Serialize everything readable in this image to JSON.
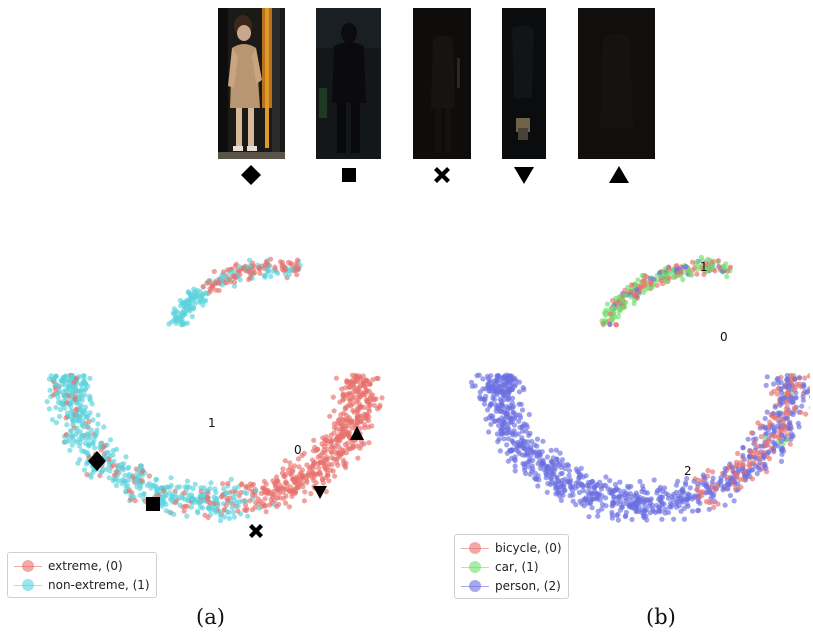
{
  "thumbnails": [
    {
      "id": "img1",
      "marker": "diamond",
      "brightness": "bright"
    },
    {
      "id": "img2",
      "marker": "square",
      "brightness": "dark"
    },
    {
      "id": "img3",
      "marker": "cross",
      "brightness": "very-dark"
    },
    {
      "id": "img4",
      "marker": "triangle-down",
      "brightness": "very-dark"
    },
    {
      "id": "img5",
      "marker": "triangle-up",
      "brightness": "darkest"
    }
  ],
  "panel_a": {
    "caption": "(a)",
    "legend": [
      {
        "label": "extreme, (0)",
        "color": "#e8706c"
      },
      {
        "label": "non-extreme, (1)",
        "color": "#5ad3dc"
      }
    ],
    "cluster_labels": [
      "1",
      "0"
    ]
  },
  "panel_b": {
    "caption": "(b)",
    "legend": [
      {
        "label": "bicycle, (0)",
        "color": "#e8706c"
      },
      {
        "label": "car, (1)",
        "color": "#6ee06a"
      },
      {
        "label": "person, (2)",
        "color": "#6a6ee0"
      }
    ],
    "cluster_labels": [
      "1",
      "0",
      "2"
    ]
  },
  "chart_data": [
    {
      "type": "scatter",
      "title": "",
      "series": [
        {
          "name": "extreme, (0)",
          "color": "#e8706c"
        },
        {
          "name": "non-extreme, (1)",
          "color": "#5ad3dc"
        }
      ],
      "annotations": [
        "1",
        "0"
      ],
      "markers": [
        "diamond",
        "square",
        "cross",
        "triangle-down",
        "triangle-up"
      ]
    },
    {
      "type": "scatter",
      "title": "",
      "series": [
        {
          "name": "bicycle, (0)",
          "color": "#e8706c"
        },
        {
          "name": "car, (1)",
          "color": "#6ee06a"
        },
        {
          "name": "person, (2)",
          "color": "#6a6ee0"
        }
      ],
      "annotations": [
        "1",
        "0",
        "2"
      ]
    }
  ]
}
